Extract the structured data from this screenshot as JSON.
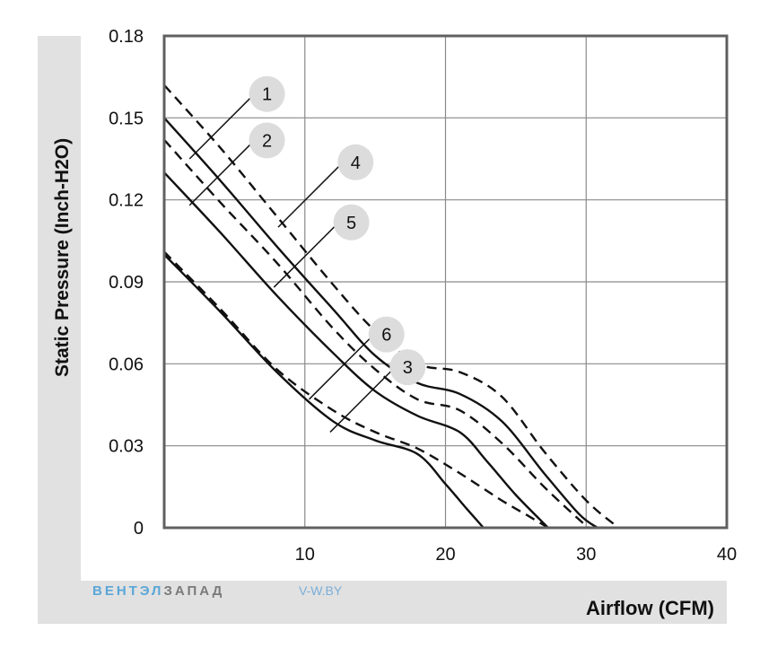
{
  "chart_data": {
    "type": "line",
    "xlabel": "Airflow (CFM)",
    "ylabel": "Static Pressure (Inch-H2O)",
    "xlim": [
      0,
      40
    ],
    "ylim": [
      0,
      0.18
    ],
    "x_ticks": [
      "10",
      "20",
      "30",
      "40"
    ],
    "y_ticks": [
      "0",
      "0.03",
      "0.06",
      "0.09",
      "0.12",
      "0.15",
      "0.18"
    ],
    "grid": true,
    "series": [
      {
        "name": "1",
        "style": "solid",
        "points": [
          [
            0,
            0.15
          ],
          [
            4,
            0.127
          ],
          [
            8,
            0.103
          ],
          [
            12,
            0.08
          ],
          [
            15,
            0.063
          ],
          [
            18,
            0.053
          ],
          [
            21,
            0.049
          ],
          [
            24,
            0.039
          ],
          [
            27,
            0.02
          ],
          [
            29.5,
            0.005
          ],
          [
            30.8,
            0.0
          ]
        ]
      },
      {
        "name": "2",
        "style": "dashed",
        "points": [
          [
            0,
            0.142
          ],
          [
            4,
            0.119
          ],
          [
            8,
            0.097
          ],
          [
            12,
            0.073
          ],
          [
            15,
            0.058
          ],
          [
            18,
            0.047
          ],
          [
            21,
            0.043
          ],
          [
            24,
            0.031
          ],
          [
            27,
            0.015
          ],
          [
            29.5,
            0.003
          ],
          [
            30.2,
            0.0
          ]
        ]
      },
      {
        "name": "3",
        "style": "dashed",
        "points": [
          [
            0,
            0.101
          ],
          [
            4,
            0.08
          ],
          [
            8,
            0.058
          ],
          [
            12,
            0.043
          ],
          [
            15,
            0.035
          ],
          [
            18,
            0.029
          ],
          [
            21,
            0.02
          ],
          [
            24,
            0.01
          ],
          [
            26,
            0.004
          ],
          [
            27.3,
            0.0
          ]
        ]
      },
      {
        "name": "4",
        "style": "dashed",
        "points": [
          [
            0,
            0.162
          ],
          [
            4,
            0.139
          ],
          [
            8,
            0.114
          ],
          [
            12,
            0.089
          ],
          [
            15,
            0.072
          ],
          [
            18,
            0.06
          ],
          [
            21,
            0.057
          ],
          [
            24,
            0.048
          ],
          [
            27,
            0.028
          ],
          [
            30,
            0.01
          ],
          [
            32.3,
            0.0
          ]
        ]
      },
      {
        "name": "5",
        "style": "solid",
        "points": [
          [
            0,
            0.13
          ],
          [
            4,
            0.108
          ],
          [
            8,
            0.085
          ],
          [
            12,
            0.064
          ],
          [
            15,
            0.05
          ],
          [
            18,
            0.041
          ],
          [
            21,
            0.035
          ],
          [
            23,
            0.024
          ],
          [
            25,
            0.012
          ],
          [
            27.3,
            0.0
          ]
        ]
      },
      {
        "name": "6",
        "style": "solid",
        "points": [
          [
            0,
            0.1
          ],
          [
            4,
            0.079
          ],
          [
            8,
            0.057
          ],
          [
            12,
            0.039
          ],
          [
            15,
            0.032
          ],
          [
            18,
            0.027
          ],
          [
            20,
            0.016
          ],
          [
            21.5,
            0.007
          ],
          [
            22.7,
            0.0
          ]
        ]
      }
    ],
    "markers": [
      {
        "label": "1",
        "tip": [
          1.8,
          0.135
        ]
      },
      {
        "label": "2",
        "tip": [
          1.8,
          0.118
        ]
      },
      {
        "label": "4",
        "tip": [
          8.1,
          0.11
        ]
      },
      {
        "label": "5",
        "tip": [
          7.8,
          0.088
        ]
      },
      {
        "label": "6",
        "tip": [
          10.3,
          0.047
        ]
      },
      {
        "label": "3",
        "tip": [
          11.8,
          0.035
        ]
      }
    ]
  },
  "watermark": {
    "brand_part1": "ВЕНТЭЛ",
    "brand_part2": "ЗАПАД",
    "site": "V-W.BY",
    "color1": "#5aa6d8",
    "color2": "#7a7a7a"
  }
}
